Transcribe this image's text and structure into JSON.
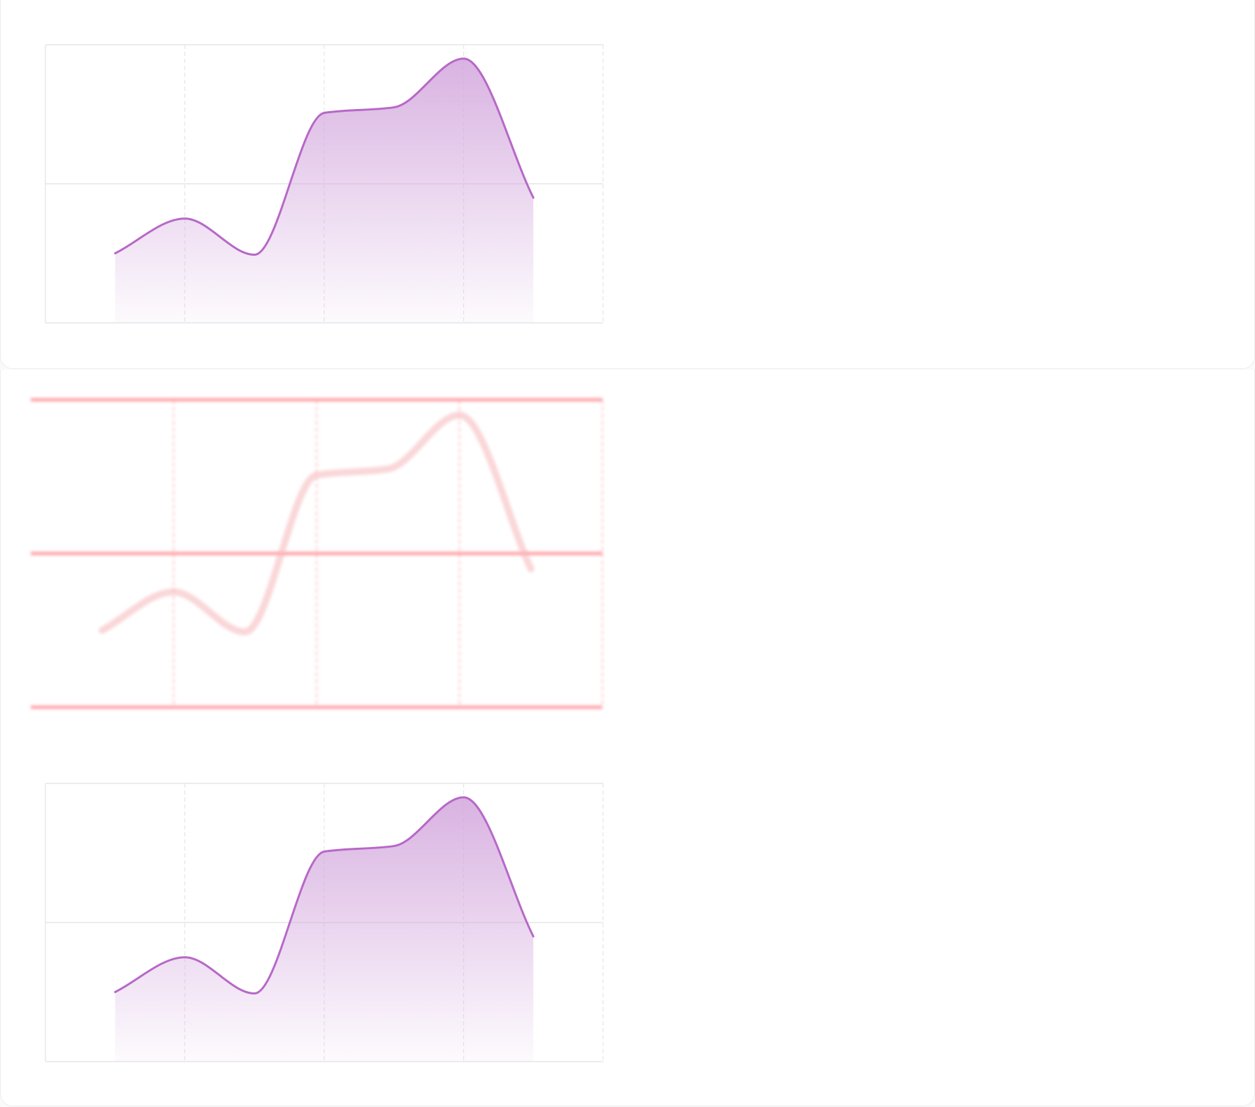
{
  "panels": [
    {
      "id": "top-chart",
      "variant": "normal"
    },
    {
      "id": "middle-chart",
      "variant": "ghost"
    },
    {
      "id": "bottom-chart",
      "variant": "normal"
    }
  ],
  "chart_data": [
    {
      "type": "area",
      "x": [
        0.5,
        1,
        1.5,
        2,
        2.5,
        3,
        3.5
      ],
      "series": [
        {
          "values": [
            0.5,
            0.75,
            0.49,
            1.51,
            1.55,
            1.9,
            0.9
          ]
        }
      ],
      "xlim": [
        0,
        4
      ],
      "ylim": [
        0,
        2
      ],
      "grid": true,
      "colors": {
        "line": "#b768c7",
        "fill": "#d2a5dc",
        "grid": "#e6e6ea"
      }
    },
    {
      "type": "line",
      "x": [
        0.5,
        1,
        1.5,
        2,
        2.5,
        3,
        3.5
      ],
      "series": [
        {
          "values": [
            0.5,
            0.75,
            0.49,
            1.51,
            1.55,
            1.9,
            0.9
          ]
        }
      ],
      "xlim": [
        0,
        4
      ],
      "ylim": [
        0,
        2
      ],
      "grid": true,
      "colors": {
        "line": "#f6b6ba",
        "grid": "#ff8f96"
      }
    },
    {
      "type": "area",
      "x": [
        0.5,
        1,
        1.5,
        2,
        2.5,
        3,
        3.5
      ],
      "series": [
        {
          "values": [
            0.5,
            0.75,
            0.49,
            1.51,
            1.55,
            1.9,
            0.9
          ]
        }
      ],
      "xlim": [
        0,
        4
      ],
      "ylim": [
        0,
        2
      ],
      "grid": true,
      "colors": {
        "line": "#b768c7",
        "fill": "#d2a5dc",
        "grid": "#e6e6ea"
      }
    }
  ]
}
